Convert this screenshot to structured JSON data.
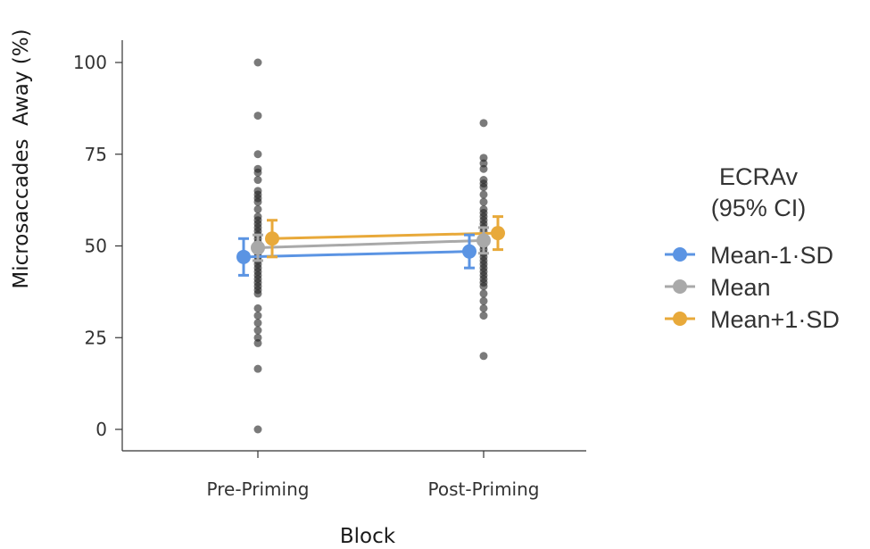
{
  "chart_data": {
    "type": "scatter",
    "title": "",
    "xlabel": "Block",
    "ylabel": "Microsaccades  Away (%)",
    "ylim": [
      0,
      100
    ],
    "yticks": [
      0,
      25,
      50,
      75,
      100
    ],
    "categories": [
      "Pre-Priming",
      "Post-Priming"
    ],
    "grid": false,
    "legend": {
      "title_line1": "ECRAv",
      "title_line2": "(95% CI)",
      "placement": "right",
      "entries": [
        "Mean-1·SD",
        "Mean",
        "Mean+1·SD"
      ]
    },
    "series": [
      {
        "name": "Mean-1·SD",
        "color": "#5b94e3",
        "values": [
          47,
          48.5
        ],
        "ci_low": [
          42,
          44
        ],
        "ci_high": [
          52,
          53
        ]
      },
      {
        "name": "Mean",
        "color": "#a9a9a9",
        "values": [
          49.5,
          51.5
        ],
        "ci_low": [
          46,
          48
        ],
        "ci_high": [
          53,
          55
        ]
      },
      {
        "name": "Mean+1·SD",
        "color": "#e8a93a",
        "values": [
          52,
          53.5
        ],
        "ci_low": [
          47,
          49
        ],
        "ci_high": [
          57,
          58
        ]
      }
    ],
    "raw_points": {
      "Pre-Priming": [
        100,
        85.5,
        75,
        71,
        70,
        68,
        65,
        64,
        63,
        62,
        60,
        58,
        57,
        56,
        55,
        54,
        53,
        52,
        51,
        50,
        49,
        48,
        47,
        46,
        45,
        44,
        43,
        42,
        41,
        40,
        39,
        38,
        37,
        33,
        31,
        29,
        27,
        25,
        23.5,
        16.5,
        0
      ],
      "Post-Priming": [
        83.5,
        74,
        72.5,
        71,
        68,
        67,
        66,
        64,
        62,
        60,
        59,
        58,
        57,
        56,
        55,
        54,
        53,
        52,
        51,
        50,
        49,
        48,
        47,
        46,
        45,
        44,
        43,
        42,
        41,
        40,
        39,
        37,
        35,
        33,
        31,
        20
      ]
    }
  }
}
